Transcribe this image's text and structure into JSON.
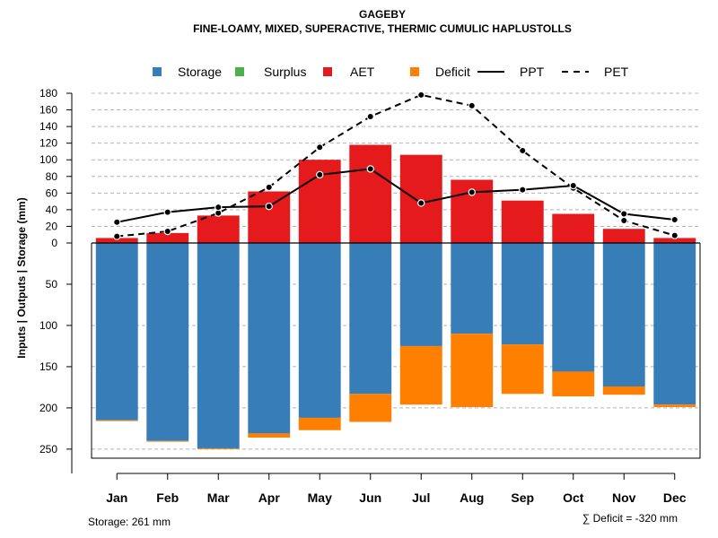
{
  "chart_data": {
    "type": "bar",
    "title": "GAGEBY",
    "subtitle": "FINE-LOAMY, MIXED, SUPERACTIVE, THERMIC CUMULIC HAPLUSTOLLS",
    "ylabel": "Inputs | Outputs | Storage    (mm)",
    "categories": [
      "Jan",
      "Feb",
      "Mar",
      "Apr",
      "May",
      "Jun",
      "Jul",
      "Aug",
      "Sep",
      "Oct",
      "Nov",
      "Dec"
    ],
    "upper_ylim": [
      0,
      180
    ],
    "upper_ticks": [
      0,
      20,
      40,
      60,
      80,
      100,
      120,
      140,
      160,
      180
    ],
    "lower_ylim": [
      0,
      261
    ],
    "lower_ticks": [
      50,
      100,
      150,
      200,
      250
    ],
    "grid": true,
    "legend_position": "top",
    "legend": [
      {
        "name": "Storage",
        "kind": "square",
        "color": "#377EB8"
      },
      {
        "name": "Surplus",
        "kind": "square",
        "color": "#4DAF4A"
      },
      {
        "name": "AET",
        "kind": "square",
        "color": "#E41A1C"
      },
      {
        "name": "Deficit",
        "kind": "square",
        "color": "#FF7F00"
      },
      {
        "name": "PPT",
        "kind": "solid-line",
        "color": "#000000"
      },
      {
        "name": "PET",
        "kind": "dashed-line",
        "color": "#000000"
      }
    ],
    "series": [
      {
        "name": "AET",
        "type": "bar-up",
        "color": "#E41A1C",
        "values": [
          6,
          12,
          33,
          62,
          100,
          118,
          106,
          76,
          51,
          35,
          17,
          6
        ]
      },
      {
        "name": "Storage",
        "type": "bar-down",
        "color": "#377EB8",
        "values": [
          215,
          240,
          249,
          231,
          212,
          183,
          125,
          110,
          123,
          156,
          174,
          196
        ]
      },
      {
        "name": "Deficit",
        "type": "bar-down-stacked",
        "color": "#FF7F00",
        "values": [
          1,
          1,
          1,
          5,
          15,
          34,
          71,
          89,
          60,
          30,
          10,
          3
        ]
      },
      {
        "name": "PPT",
        "type": "line",
        "style": "solid",
        "color": "#000000",
        "values": [
          25,
          37,
          43,
          44,
          82,
          89,
          48,
          61,
          64,
          69,
          35,
          28
        ]
      },
      {
        "name": "PET",
        "type": "line",
        "style": "dashed",
        "color": "#000000",
        "values": [
          8,
          14,
          36,
          67,
          115,
          152,
          178,
          165,
          111,
          66,
          27,
          9
        ]
      }
    ],
    "footer_left": "Storage: 261 mm",
    "footer_right": "∑ Deficit = -320 mm"
  }
}
